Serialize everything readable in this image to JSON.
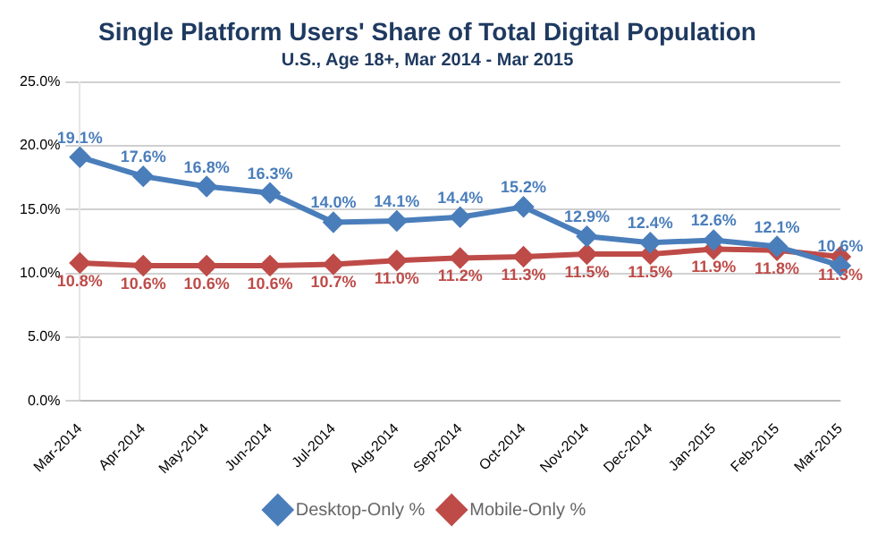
{
  "chart_data": {
    "type": "line",
    "title": "Single Platform Users' Share of Total Digital Population",
    "subtitle": "U.S., Age 18+, Mar 2014 - Mar 2015",
    "categories": [
      "Mar-2014",
      "Apr-2014",
      "May-2014",
      "Jun-2014",
      "Jul-2014",
      "Aug-2014",
      "Sep-2014",
      "Oct-2014",
      "Nov-2014",
      "Dec-2014",
      "Jan-2015",
      "Feb-2015",
      "Mar-2015"
    ],
    "series": [
      {
        "name": "Desktop-Only %",
        "color": "#4a7ebb",
        "values": [
          19.1,
          17.6,
          16.8,
          16.3,
          14.0,
          14.1,
          14.4,
          15.2,
          12.9,
          12.4,
          12.6,
          12.1,
          10.6
        ],
        "value_labels": [
          "19.1%",
          "17.6%",
          "16.8%",
          "16.3%",
          "14.0%",
          "14.1%",
          "14.4%",
          "15.2%",
          "12.9%",
          "12.4%",
          "12.6%",
          "12.1%",
          "10.6%"
        ]
      },
      {
        "name": "Mobile-Only %",
        "color": "#be4b48",
        "values": [
          10.8,
          10.6,
          10.6,
          10.6,
          10.7,
          11.0,
          11.2,
          11.3,
          11.5,
          11.5,
          11.9,
          11.8,
          11.3
        ],
        "value_labels": [
          "10.8%",
          "10.6%",
          "10.6%",
          "10.6%",
          "10.7%",
          "11.0%",
          "11.2%",
          "11.3%",
          "11.5%",
          "11.5%",
          "11.9%",
          "11.8%",
          "11.3%"
        ]
      }
    ],
    "ylim": [
      0,
      25
    ],
    "yticks": [
      {
        "value": 0,
        "label": "0.0%"
      },
      {
        "value": 5,
        "label": "5.0%"
      },
      {
        "value": 10,
        "label": "10.0%"
      },
      {
        "value": 15,
        "label": "15.0%"
      },
      {
        "value": 20,
        "label": "20.0%"
      },
      {
        "value": 25,
        "label": "25.0%"
      }
    ],
    "grid": "y",
    "legend": "bottom",
    "marker": "diamond",
    "line_style": "solid"
  }
}
